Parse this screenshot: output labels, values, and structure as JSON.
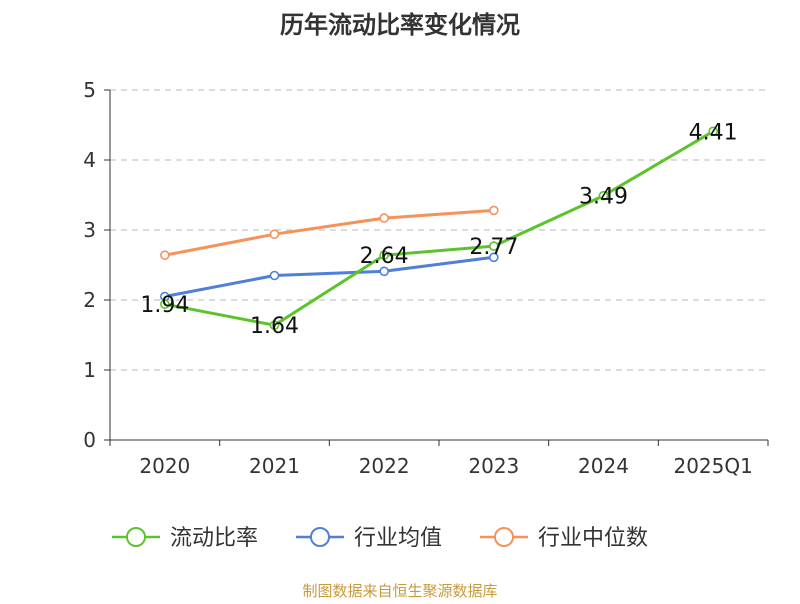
{
  "chart_data": {
    "type": "line",
    "title": "历年流动比率变化情况",
    "categories": [
      "2020",
      "2021",
      "2022",
      "2023",
      "2024",
      "2025Q1"
    ],
    "ylim": [
      0,
      5
    ],
    "yticks": [
      0,
      1,
      2,
      3,
      4,
      5
    ],
    "grid": true,
    "legend_position": "bottom",
    "series": [
      {
        "name": "流动比率",
        "color": "#5cc42b",
        "values": [
          1.94,
          1.64,
          2.64,
          2.77,
          3.49,
          4.41
        ],
        "labels": [
          "1.94",
          "1.64",
          "2.64",
          "2.77",
          "3.49",
          "4.41"
        ]
      },
      {
        "name": "行业均值",
        "color": "#4f7fd8",
        "values": [
          2.05,
          2.35,
          2.41,
          2.61,
          null,
          null
        ]
      },
      {
        "name": "行业中位数",
        "color": "#f5925a",
        "values": [
          2.64,
          2.94,
          3.17,
          3.28,
          null,
          null
        ]
      }
    ],
    "source": "制图数据来自恒生聚源数据库",
    "source_color": "#c99a3b"
  }
}
